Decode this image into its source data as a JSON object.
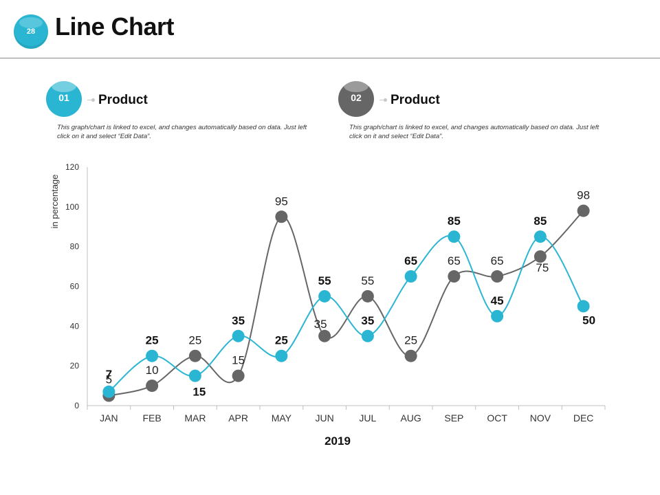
{
  "header": {
    "slide_number": "28",
    "title": "Line Chart"
  },
  "legend": [
    {
      "number": "01",
      "label": "Product",
      "color": "#2ab6d2",
      "description": "This graph/chart is linked to excel, and changes automatically based on data. Just left click on it and select “Edit Data”."
    },
    {
      "number": "02",
      "label": "Product",
      "color": "#666666",
      "description": "This graph/chart is linked to excel, and changes automatically based on data. Just left click on it and select “Edit Data”."
    }
  ],
  "chart_data": {
    "type": "line",
    "title": "",
    "xlabel": "2019",
    "ylabel": "in percentage",
    "categories": [
      "JAN",
      "FEB",
      "MAR",
      "APR",
      "MAY",
      "JUN",
      "JUL",
      "AUG",
      "SEP",
      "OCT",
      "NOV",
      "DEC"
    ],
    "ylim": [
      0,
      120
    ],
    "yticks": [
      0,
      20,
      40,
      60,
      80,
      100,
      120
    ],
    "smooth": true,
    "grid": false,
    "series": [
      {
        "name": "Product 01",
        "color": "#2ab6d2",
        "label_bold": true,
        "values": [
          7,
          25,
          15,
          35,
          25,
          55,
          35,
          65,
          85,
          45,
          85,
          50
        ],
        "label_side": [
          "above",
          "above",
          "below",
          "above",
          "above",
          "above",
          "above",
          "above",
          "above",
          "above",
          "above",
          "below"
        ]
      },
      {
        "name": "Product 02",
        "color": "#666666",
        "label_bold": false,
        "values": [
          5,
          10,
          25,
          15,
          95,
          35,
          55,
          25,
          65,
          65,
          75,
          98
        ],
        "label_side": [
          "above",
          "above",
          "above",
          "above",
          "above",
          "right",
          "above",
          "above",
          "above",
          "above",
          "below",
          "above"
        ]
      }
    ]
  }
}
